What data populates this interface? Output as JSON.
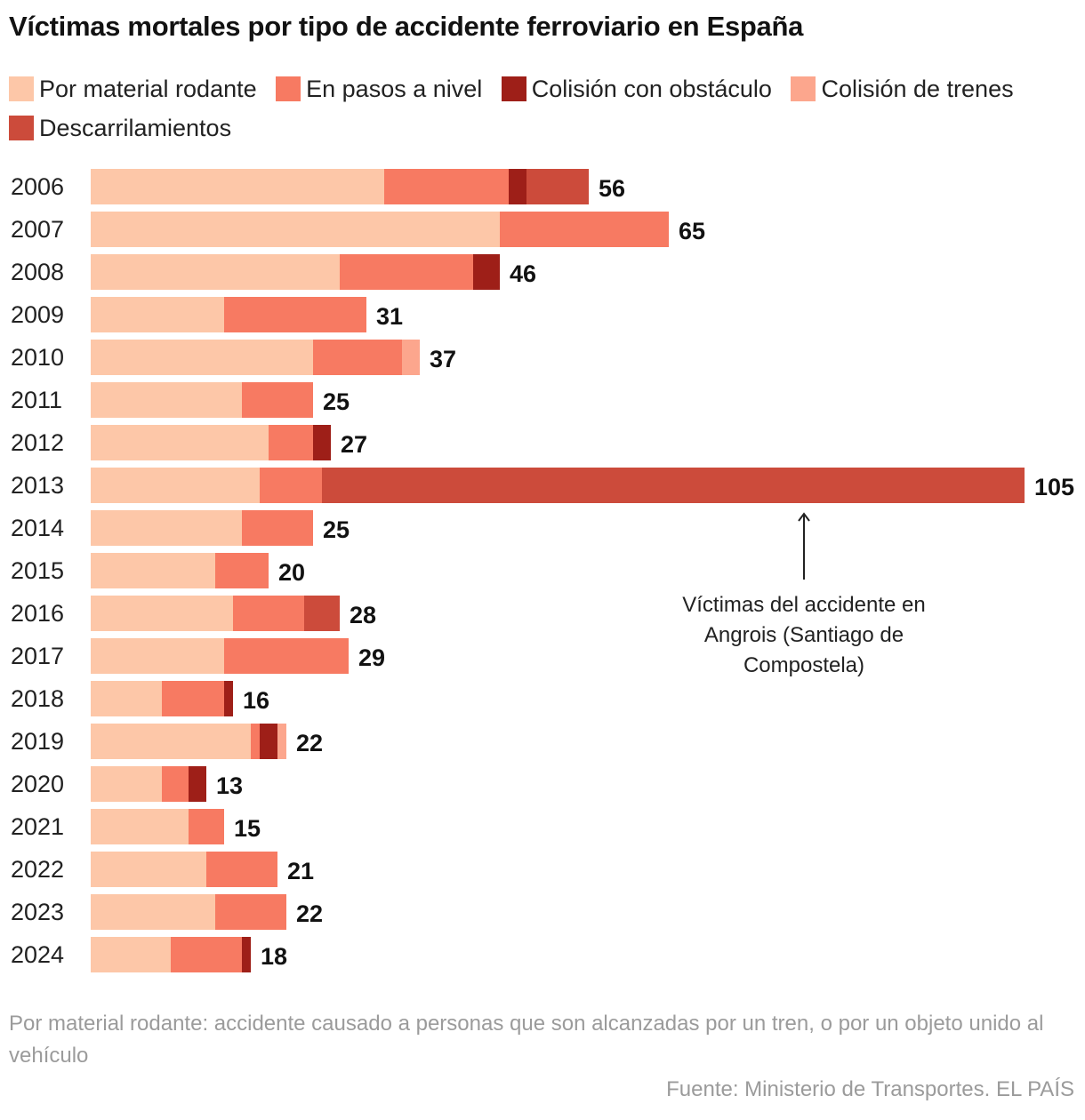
{
  "title": "Víctimas mortales por tipo de accidente ferroviario en España",
  "footnote": "Por material rodante: accidente causado a personas que son alcanzadas por un tren, o por un objeto unido al vehículo",
  "source": "Fuente: Ministerio de Transportes. EL PAÍS",
  "chart_data": {
    "type": "bar",
    "orientation": "horizontal",
    "stacked": true,
    "title": "Víctimas mortales por tipo de accidente ferroviario en España",
    "xlabel": "",
    "ylabel": "",
    "xlim": [
      0,
      105
    ],
    "grid": false,
    "legend_position": "top",
    "categories": [
      "2006",
      "2007",
      "2008",
      "2009",
      "2010",
      "2011",
      "2012",
      "2013",
      "2014",
      "2015",
      "2016",
      "2017",
      "2018",
      "2019",
      "2020",
      "2021",
      "2022",
      "2023",
      "2024"
    ],
    "series": [
      {
        "name": "Por material rodante",
        "color": "#fdc7a8",
        "values": [
          33,
          46,
          28,
          15,
          25,
          17,
          20,
          19,
          17,
          14,
          16,
          15,
          8,
          18,
          8,
          11,
          13,
          14,
          9
        ]
      },
      {
        "name": "En pasos a nivel",
        "color": "#f77a62",
        "values": [
          14,
          19,
          15,
          16,
          10,
          8,
          5,
          7,
          8,
          6,
          8,
          14,
          7,
          1,
          3,
          4,
          8,
          8,
          8
        ]
      },
      {
        "name": "Colisión con obstáculo",
        "color": "#9e1f18",
        "values": [
          2,
          0,
          3,
          0,
          0,
          0,
          2,
          0,
          0,
          0,
          0,
          0,
          1,
          2,
          2,
          0,
          0,
          0,
          1
        ]
      },
      {
        "name": "Colisión de trenes",
        "color": "#fca68d",
        "values": [
          0,
          0,
          0,
          0,
          2,
          0,
          0,
          0,
          0,
          0,
          0,
          0,
          0,
          1,
          0,
          0,
          0,
          0,
          0
        ]
      },
      {
        "name": "Descarrilamientos",
        "color": "#cc4b3b",
        "values": [
          7,
          0,
          0,
          0,
          0,
          0,
          0,
          79,
          0,
          0,
          4,
          0,
          0,
          0,
          0,
          0,
          0,
          0,
          0
        ]
      }
    ],
    "totals": [
      56,
      65,
      46,
      31,
      37,
      25,
      27,
      105,
      25,
      20,
      28,
      29,
      16,
      22,
      13,
      15,
      21,
      22,
      18
    ],
    "annotation": {
      "category": "2013",
      "lines": [
        "Víctimas del accidente en",
        "Angrois (Santiago de",
        "Compostela)"
      ]
    }
  }
}
